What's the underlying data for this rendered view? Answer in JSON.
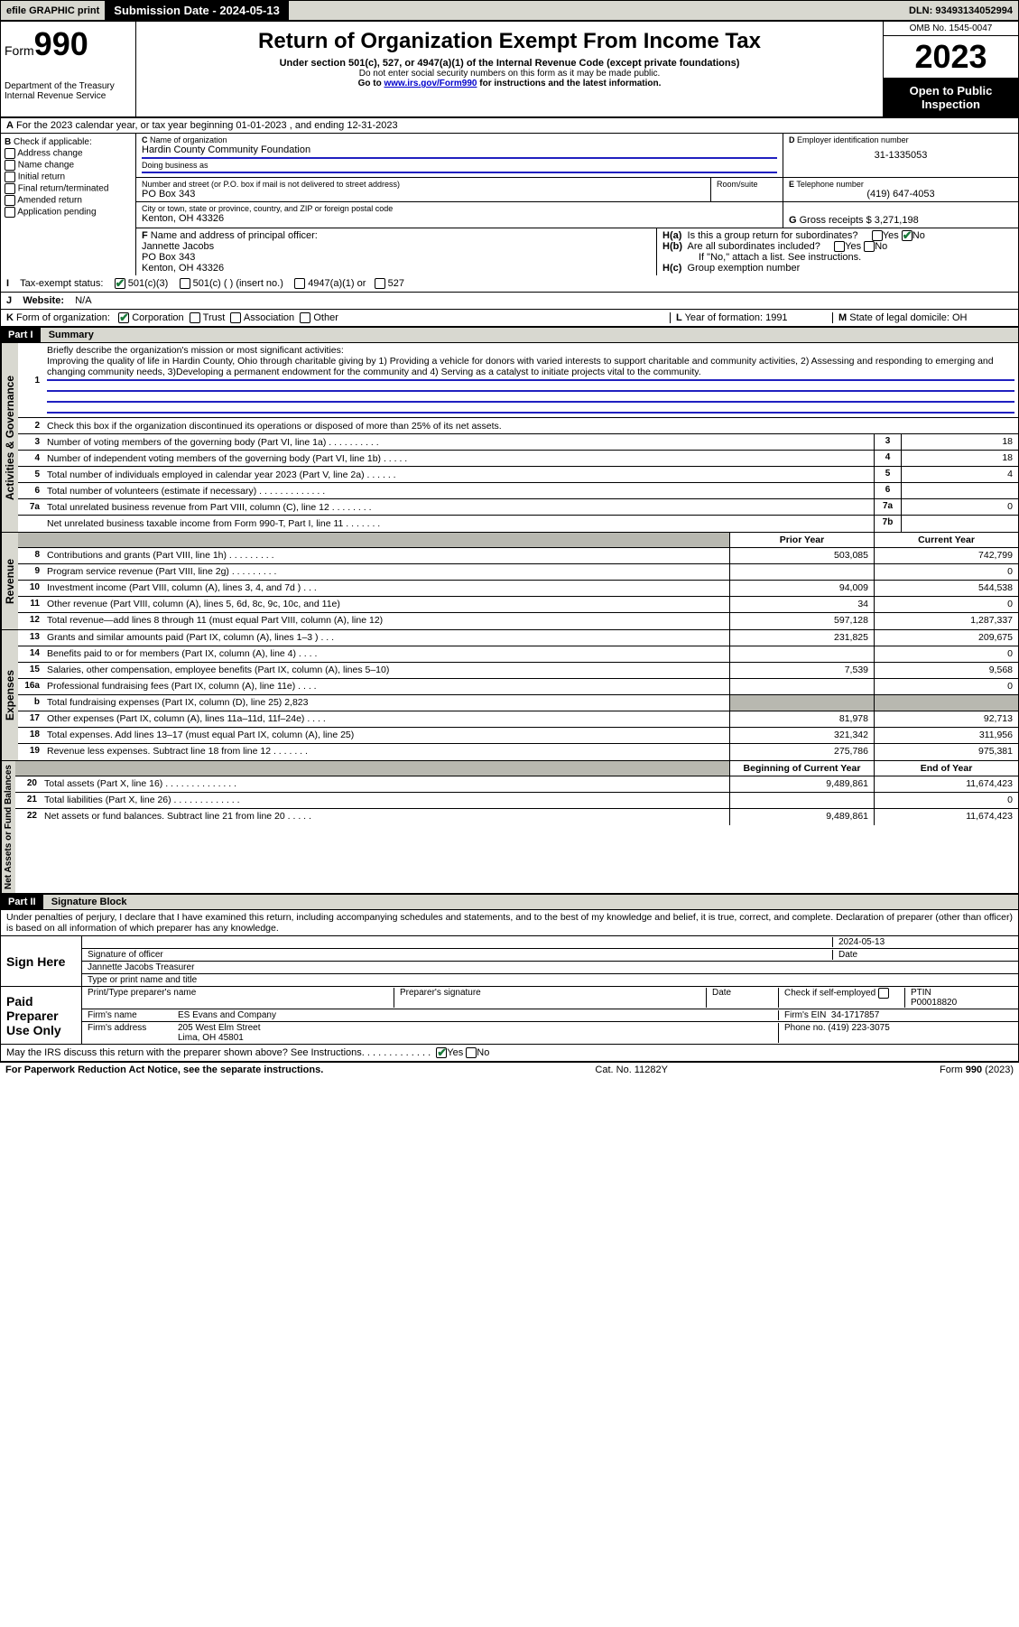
{
  "topbar": {
    "efile": "efile GRAPHIC print",
    "subdate_label": "Submission Date - 2024-05-13",
    "dln": "DLN: 93493134052994"
  },
  "header": {
    "form_prefix": "Form",
    "form_num": "990",
    "dept": "Department of the Treasury Internal Revenue Service",
    "title": "Return of Organization Exempt From Income Tax",
    "sub": "Under section 501(c), 527, or 4947(a)(1) of the Internal Revenue Code (except private foundations)",
    "note1": "Do not enter social security numbers on this form as it may be made public.",
    "note2_pre": "Go to ",
    "note2_link": "www.irs.gov/Form990",
    "note2_post": " for instructions and the latest information.",
    "omb": "OMB No. 1545-0047",
    "year": "2023",
    "inspect": "Open to Public Inspection"
  },
  "rowA": "For the 2023 calendar year, or tax year beginning 01-01-2023   , and ending 12-31-2023",
  "B": {
    "label": "Check if applicable:",
    "opts": [
      "Address change",
      "Name change",
      "Initial return",
      "Final return/terminated",
      "Amended return",
      "Application pending"
    ]
  },
  "C": {
    "label": "Name of organization",
    "name": "Hardin County Community Foundation",
    "dba_label": "Doing business as",
    "dba": ""
  },
  "addr": {
    "label": "Number and street (or P.O. box if mail is not delivered to street address)",
    "room": "Room/suite",
    "street": "PO Box 343",
    "city_label": "City or town, state or province, country, and ZIP or foreign postal code",
    "city": "Kenton, OH  43326"
  },
  "D": {
    "label": "Employer identification number",
    "val": "31-1335053"
  },
  "E": {
    "label": "Telephone number",
    "val": "(419) 647-4053"
  },
  "G": {
    "label": "Gross receipts $",
    "val": "3,271,198"
  },
  "F": {
    "label": "Name and address of principal officer:",
    "name": "Jannette Jacobs",
    "addr1": "PO Box 343",
    "addr2": "Kenton, OH  43326"
  },
  "H": {
    "a": "Is this a group return for subordinates?",
    "b": "Are all subordinates included?",
    "b_note": "If \"No,\" attach a list. See instructions.",
    "c": "Group exemption number",
    "yes": "Yes",
    "no": "No"
  },
  "I": {
    "label": "Tax-exempt status:",
    "opts": [
      "501(c)(3)",
      "501(c) (  ) (insert no.)",
      "4947(a)(1) or",
      "527"
    ]
  },
  "J": {
    "label": "Website:",
    "val": "N/A"
  },
  "K": {
    "label": "Form of organization:",
    "opts": [
      "Corporation",
      "Trust",
      "Association",
      "Other"
    ]
  },
  "L": {
    "label": "Year of formation:",
    "val": "1991"
  },
  "M": {
    "label": "State of legal domicile:",
    "val": "OH"
  },
  "part1": {
    "hdr": "Part I",
    "title": "Summary",
    "q1_label": "Briefly describe the organization's mission or most significant activities:",
    "q1": "Improving the quality of life in Hardin County, Ohio through charitable giving by 1) Providing a vehicle for donors with varied interests to support charitable and community activities, 2) Assessing and responding to emerging and changing community needs, 3)Developing a permanent endowment for the community and 4) Serving as a catalyst to initiate projects vital to the community.",
    "q2": "Check this box   if the organization discontinued its operations or disposed of more than 25% of its net assets.",
    "gov_label": "Activities & Governance",
    "rev_label": "Revenue",
    "exp_label": "Expenses",
    "net_label": "Net Assets or Fund Balances",
    "rows_gov": [
      {
        "n": "3",
        "d": "Number of voting members of the governing body (Part VI, line 1a)   .    .    .    .    .    .    .    .    .    .",
        "box": "3",
        "v": "18"
      },
      {
        "n": "4",
        "d": "Number of independent voting members of the governing body (Part VI, line 1b)   .    .    .    .    .",
        "box": "4",
        "v": "18"
      },
      {
        "n": "5",
        "d": "Total number of individuals employed in calendar year 2023 (Part V, line 2a)   .    .    .    .    .    .",
        "box": "5",
        "v": "4"
      },
      {
        "n": "6",
        "d": "Total number of volunteers (estimate if necessary)   .    .    .    .    .    .    .    .    .    .    .    .    .",
        "box": "6",
        "v": ""
      },
      {
        "n": "7a",
        "d": "Total unrelated business revenue from Part VIII, column (C), line 12   .    .    .    .    .    .    .    .",
        "box": "7a",
        "v": "0"
      },
      {
        "n": "",
        "d": "Net unrelated business taxable income from Form 990-T, Part I, line 11   .    .    .    .    .    .    .",
        "box": "7b",
        "v": ""
      }
    ],
    "hdr_prior": "Prior Year",
    "hdr_curr": "Current Year",
    "rows_rev": [
      {
        "n": "8",
        "d": "Contributions and grants (Part VIII, line 1h)   .    .    .    .    .    .    .    .    .",
        "p": "503,085",
        "c": "742,799"
      },
      {
        "n": "9",
        "d": "Program service revenue (Part VIII, line 2g)   .    .    .    .    .    .    .    .    .",
        "p": "",
        "c": "0"
      },
      {
        "n": "10",
        "d": "Investment income (Part VIII, column (A), lines 3, 4, and 7d )   .    .    .",
        "p": "94,009",
        "c": "544,538"
      },
      {
        "n": "11",
        "d": "Other revenue (Part VIII, column (A), lines 5, 6d, 8c, 9c, 10c, and 11e)",
        "p": "34",
        "c": "0"
      },
      {
        "n": "12",
        "d": "Total revenue—add lines 8 through 11 (must equal Part VIII, column (A), line 12)",
        "p": "597,128",
        "c": "1,287,337"
      }
    ],
    "rows_exp": [
      {
        "n": "13",
        "d": "Grants and similar amounts paid (Part IX, column (A), lines 1–3 )   .    .    .",
        "p": "231,825",
        "c": "209,675"
      },
      {
        "n": "14",
        "d": "Benefits paid to or for members (Part IX, column (A), line 4)   .    .    .    .",
        "p": "",
        "c": "0"
      },
      {
        "n": "15",
        "d": "Salaries, other compensation, employee benefits (Part IX, column (A), lines 5–10)",
        "p": "7,539",
        "c": "9,568"
      },
      {
        "n": "16a",
        "d": "Professional fundraising fees (Part IX, column (A), line 11e)   .    .    .    .",
        "p": "",
        "c": "0"
      },
      {
        "n": "b",
        "d": "Total fundraising expenses (Part IX, column (D), line 25) 2,823",
        "p": "grey",
        "c": "grey"
      },
      {
        "n": "17",
        "d": "Other expenses (Part IX, column (A), lines 11a–11d, 11f–24e)   .    .    .    .",
        "p": "81,978",
        "c": "92,713"
      },
      {
        "n": "18",
        "d": "Total expenses. Add lines 13–17 (must equal Part IX, column (A), line 25)",
        "p": "321,342",
        "c": "311,956"
      },
      {
        "n": "19",
        "d": "Revenue less expenses. Subtract line 18 from line 12   .    .    .    .    .    .    .",
        "p": "275,786",
        "c": "975,381"
      }
    ],
    "hdr_beg": "Beginning of Current Year",
    "hdr_end": "End of Year",
    "rows_net": [
      {
        "n": "20",
        "d": "Total assets (Part X, line 16)   .    .    .    .    .    .    .    .    .    .    .    .    .    .",
        "p": "9,489,861",
        "c": "11,674,423"
      },
      {
        "n": "21",
        "d": "Total liabilities (Part X, line 26)   .    .    .    .    .    .    .    .    .    .    .    .    .",
        "p": "",
        "c": "0"
      },
      {
        "n": "22",
        "d": "Net assets or fund balances. Subtract line 21 from line 20   .    .    .    .    .",
        "p": "9,489,861",
        "c": "11,674,423"
      }
    ]
  },
  "part2": {
    "hdr": "Part II",
    "title": "Signature Block",
    "perjury": "Under penalties of perjury, I declare that I have examined this return, including accompanying schedules and statements, and to the best of my knowledge and belief, it is true, correct, and complete. Declaration of preparer (other than officer) is based on all information of which preparer has any knowledge.",
    "sign_here": "Sign Here",
    "sig_officer": "Signature of officer",
    "sig_date": "Date",
    "sig_date_val": "2024-05-13",
    "officer_name": "Jannette Jacobs  Treasurer",
    "type_name": "Type or print name and title",
    "paid": "Paid Preparer Use Only",
    "prep_name_l": "Print/Type preparer's name",
    "prep_sig_l": "Preparer's signature",
    "prep_date_l": "Date",
    "check_self": "Check       if self-employed",
    "ptin_l": "PTIN",
    "ptin": "P00018820",
    "firm_l": "Firm's name",
    "firm": "ES Evans and Company",
    "ein_l": "Firm's EIN",
    "ein": "34-1717857",
    "faddr_l": "Firm's address",
    "faddr1": "205 West Elm Street",
    "faddr2": "Lima, OH  45801",
    "phone_l": "Phone no.",
    "phone": "(419) 223-3075",
    "discuss": "May the IRS discuss this return with the preparer shown above? See Instructions.   .    .    .    .    .    .    .    .    .    .    .    ."
  },
  "footer": {
    "left": "For Paperwork Reduction Act Notice, see the separate instructions.",
    "mid": "Cat. No. 11282Y",
    "right": "Form 990 (2023)"
  }
}
